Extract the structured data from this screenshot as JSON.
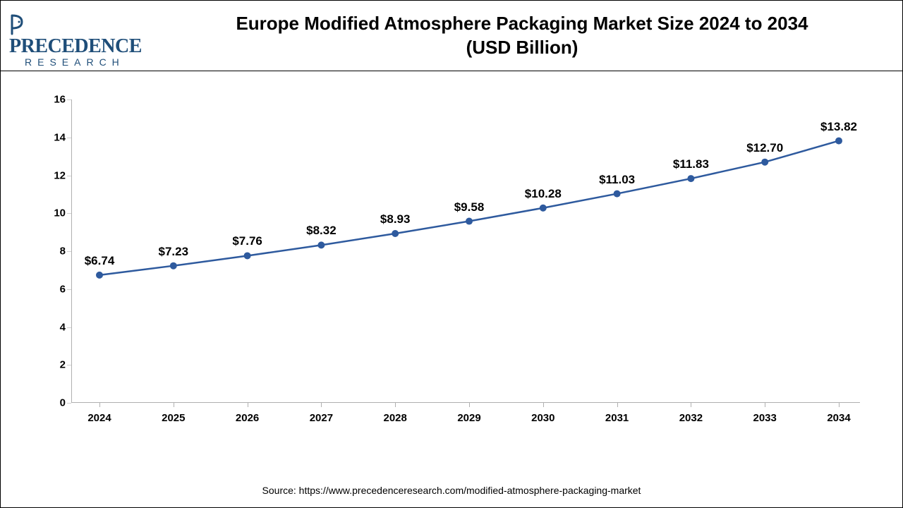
{
  "logo": {
    "main": "PRECEDENCE",
    "sub": "RESEARCH",
    "color": "#1f4e79"
  },
  "title": {
    "line1": "Europe Modified Atmosphere Packaging Market Size 2024 to 2034",
    "line2": "(USD Billion)",
    "fontsize": 26,
    "color": "#000000"
  },
  "chart": {
    "type": "line",
    "categories": [
      "2024",
      "2025",
      "2026",
      "2027",
      "2028",
      "2029",
      "2030",
      "2031",
      "2032",
      "2033",
      "2034"
    ],
    "values": [
      6.74,
      7.23,
      7.76,
      8.32,
      8.93,
      9.58,
      10.28,
      11.03,
      11.83,
      12.7,
      13.82
    ],
    "labels": [
      "$6.74",
      "$7.23",
      "$7.76",
      "$8.32",
      "$8.93",
      "$9.58",
      "$10.28",
      "$11.03",
      "$11.83",
      "$12.70",
      "$13.82"
    ],
    "line_color": "#2e5a9e",
    "marker_color": "#2e5a9e",
    "marker_size": 5,
    "line_width": 2.5,
    "ylim": [
      0,
      16
    ],
    "ytick_step": 2,
    "yticks": [
      0,
      2,
      4,
      6,
      8,
      10,
      12,
      14,
      16
    ],
    "background_color": "#ffffff",
    "axis_color": "#b0b0b0",
    "label_fontsize": 17,
    "tick_fontsize": 15,
    "label_offset_y": 30
  },
  "source": {
    "text": "Source: https://www.precedenceresearch.com/modified-atmosphere-packaging-market",
    "fontsize": 14
  }
}
